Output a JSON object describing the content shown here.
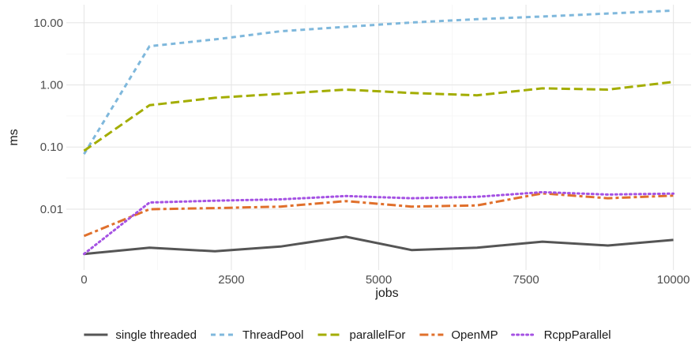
{
  "chart_data": {
    "type": "line",
    "xlabel": "jobs",
    "ylabel": "ms",
    "xlim": [
      -300,
      10300
    ],
    "ylim": [
      0.00105,
      19.5
    ],
    "y_scale": "log",
    "grid": true,
    "legend_position": "bottom",
    "x_ticks": [
      {
        "value": 0,
        "label": "0"
      },
      {
        "value": 2500,
        "label": "2500"
      },
      {
        "value": 5000,
        "label": "5000"
      },
      {
        "value": 7500,
        "label": "7500"
      },
      {
        "value": 10000,
        "label": "10000"
      }
    ],
    "y_ticks": [
      {
        "value": 0.01,
        "label": "0.01"
      },
      {
        "value": 0.1,
        "label": "0.10"
      },
      {
        "value": 1,
        "label": "1.00"
      },
      {
        "value": 10,
        "label": "10.00"
      }
    ],
    "x": [
      0,
      1111,
      2222,
      3333,
      4444,
      5556,
      6667,
      7778,
      8889,
      10000
    ],
    "series": [
      {
        "name": "single threaded",
        "color": "#555555",
        "dash": "solid",
        "values": [
          0.0019,
          0.0024,
          0.0021,
          0.0025,
          0.0036,
          0.0022,
          0.0024,
          0.003,
          0.0026,
          0.0032
        ]
      },
      {
        "name": "ThreadPool",
        "color": "#7fb8dc",
        "dash": "dashed",
        "values": [
          0.077,
          4.2,
          5.4,
          7.3,
          8.6,
          10.1,
          11.4,
          12.6,
          14.1,
          15.7
        ]
      },
      {
        "name": "parallelFor",
        "color": "#a3ad00",
        "dash": "longdash",
        "values": [
          0.087,
          0.47,
          0.62,
          0.72,
          0.84,
          0.74,
          0.68,
          0.88,
          0.84,
          1.12
        ]
      },
      {
        "name": "OpenMP",
        "color": "#e0702c",
        "dash": "twodash",
        "values": [
          0.0037,
          0.01,
          0.0104,
          0.011,
          0.0135,
          0.011,
          0.0115,
          0.018,
          0.015,
          0.0165
        ]
      },
      {
        "name": "RcppParallel",
        "color": "#a552e3",
        "dash": "dotted",
        "values": [
          0.0019,
          0.0128,
          0.0137,
          0.0144,
          0.0163,
          0.015,
          0.0158,
          0.0188,
          0.0172,
          0.0178
        ]
      }
    ]
  }
}
